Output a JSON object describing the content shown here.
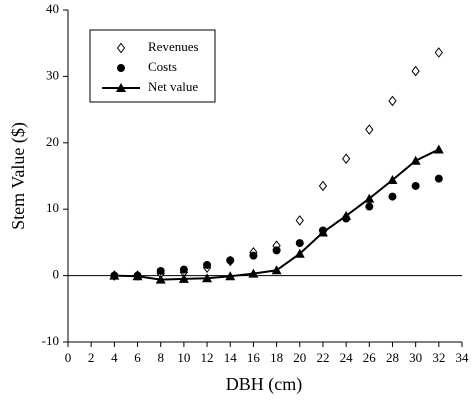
{
  "chart_data": {
    "type": "line",
    "x_label": "DBH (cm)",
    "y_label": "Stem Value ($)",
    "xlim": [
      0,
      34
    ],
    "xticks": [
      0,
      2,
      4,
      6,
      8,
      10,
      12,
      14,
      16,
      18,
      20,
      22,
      24,
      26,
      28,
      30,
      32,
      34
    ],
    "ylim": [
      -10,
      40
    ],
    "yticks": [
      -10,
      0,
      10,
      20,
      30,
      40
    ],
    "x": [
      4,
      6,
      8,
      10,
      12,
      14,
      16,
      18,
      20,
      22,
      24,
      26,
      28,
      30,
      32
    ],
    "legend": "upper left",
    "series": [
      {
        "name": "Revenues",
        "color": "#000000",
        "marker": "diamond-open",
        "line": false,
        "values": [
          0,
          0,
          0.3,
          0.5,
          1.2,
          2.2,
          3.5,
          4.5,
          8.3,
          13.5,
          17.6,
          22,
          26.3,
          30.8,
          33.6
        ]
      },
      {
        "name": "Costs",
        "color": "#000000",
        "marker": "circle",
        "line": false,
        "values": [
          0,
          0,
          0.7,
          0.9,
          1.6,
          2.3,
          3.0,
          3.8,
          4.9,
          6.8,
          8.6,
          10.4,
          11.9,
          13.5,
          14.6
        ]
      },
      {
        "name": "Net value",
        "color": "#000000",
        "marker": "triangle",
        "line": true,
        "values": [
          0,
          -0.1,
          -0.6,
          -0.5,
          -0.4,
          -0.1,
          0.3,
          0.8,
          3.3,
          6.5,
          9.0,
          11.6,
          14.4,
          17.3,
          19.0
        ]
      }
    ]
  }
}
